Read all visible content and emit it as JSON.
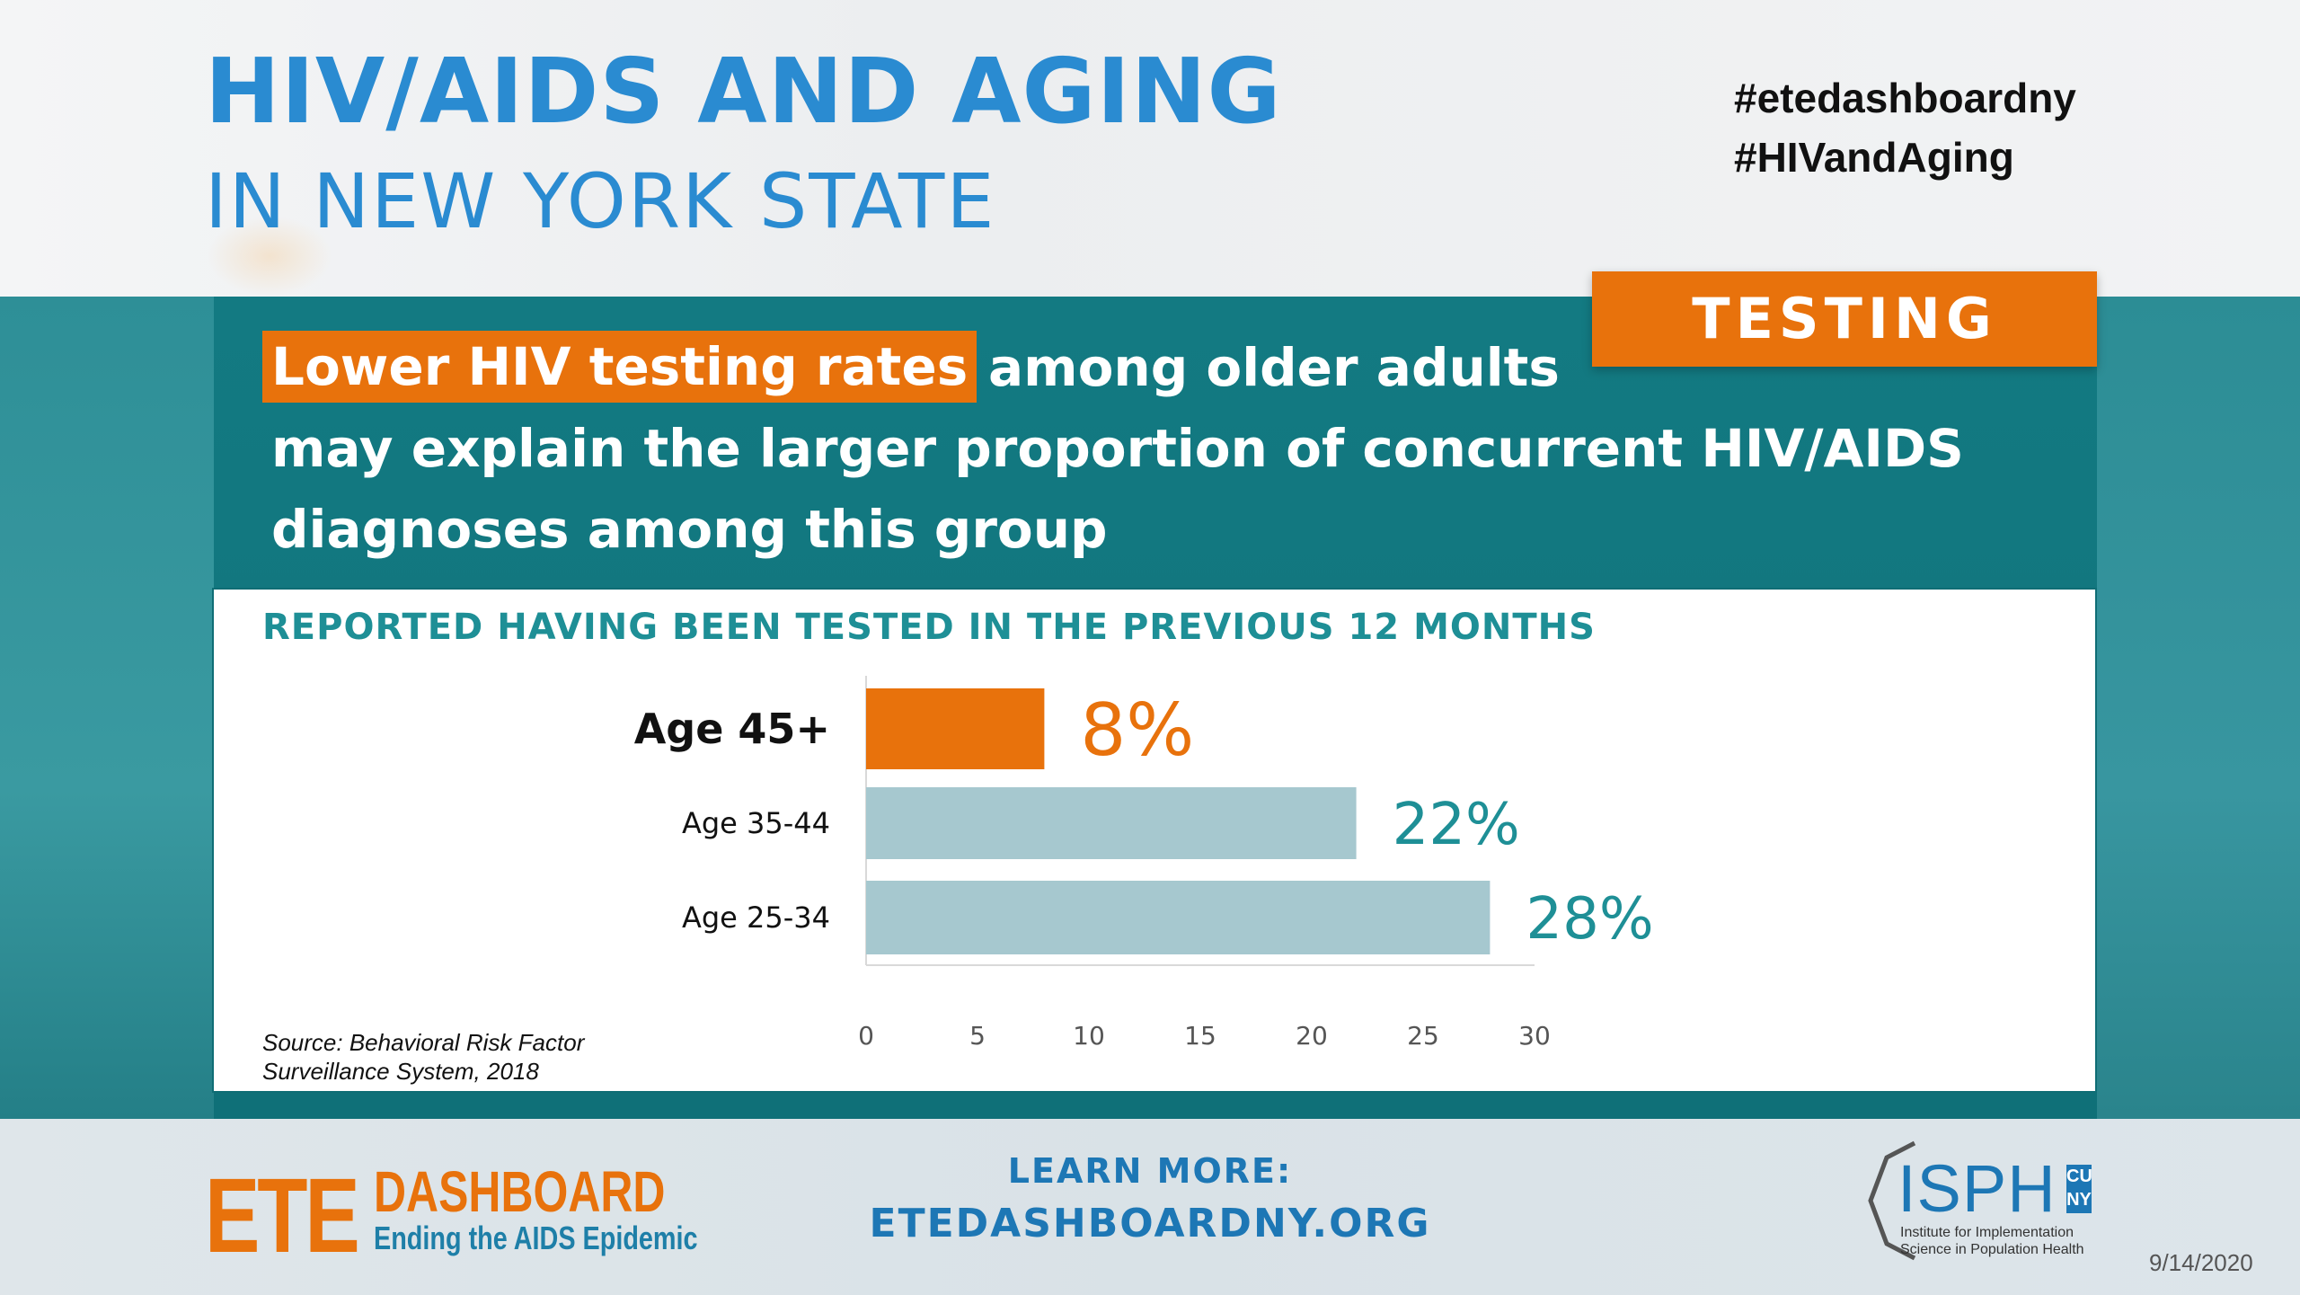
{
  "header": {
    "title_line1": "HIV/AIDS AND AGING",
    "title_line2": "IN NEW YORK STATE",
    "hashtags": [
      "#etedashboardny",
      "#HIVandAging"
    ]
  },
  "tag": "TESTING",
  "headline": {
    "highlight": "Lower HIV testing rates",
    "line1_rest": "among older adults",
    "line2": "may explain the larger proportion of concurrent HIV/AIDS",
    "line3": "diagnoses among this group"
  },
  "chart_data": {
    "type": "bar",
    "orientation": "horizontal",
    "title": "REPORTED HAVING BEEN TESTED IN THE PREVIOUS 12 MONTHS",
    "categories": [
      "Age 45+",
      "Age 35-44",
      "Age 25-34"
    ],
    "values": [
      8,
      22,
      28
    ],
    "value_labels": [
      "8%",
      "22%",
      "28%"
    ],
    "highlight_category": "Age 45+",
    "colors": {
      "highlight": "#e8720c",
      "default": "#a6c8cf",
      "highlight_label": "#e8720c",
      "default_label": "#1e8f96"
    },
    "xlim": [
      0,
      30
    ],
    "xticks": [
      0,
      5,
      10,
      15,
      20,
      25,
      30
    ],
    "source": "Source: Behavioral Risk Factor Surveillance System, 2018"
  },
  "footer": {
    "ete": "ETE",
    "dashboard": "DASHBOARD",
    "ete_subtitle": "Ending the AIDS Epidemic",
    "learn_more": "LEARN MORE:",
    "url": "ETEDASHBOARDNY.ORG",
    "isph": "ISPH",
    "cuny": "CU NY",
    "isph_subtitle": "Institute for Implementation Science in Population Health",
    "date": "9/14/2020"
  }
}
